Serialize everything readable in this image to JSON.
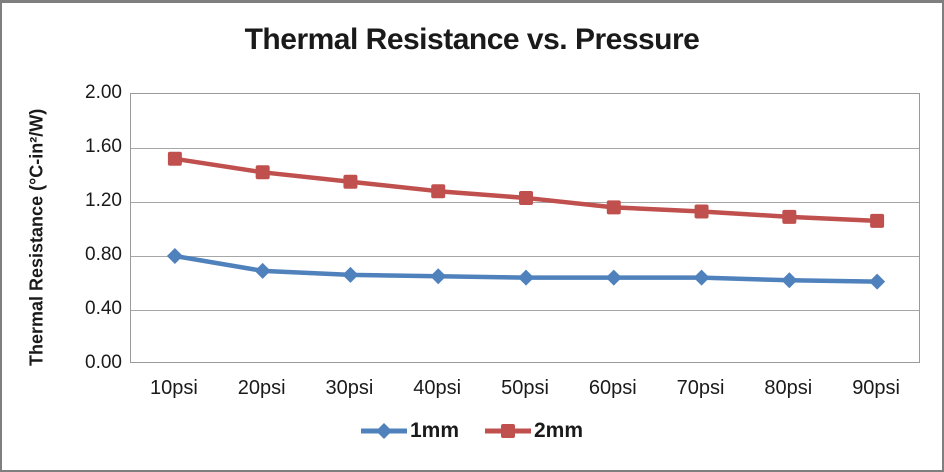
{
  "chart_data": {
    "type": "line",
    "title": "Thermal Resistance vs. Pressure",
    "xlabel": "",
    "ylabel": "Thermal Resistance (°C-in²/W)",
    "categories": [
      "10psi",
      "20psi",
      "30psi",
      "40psi",
      "50psi",
      "60psi",
      "70psi",
      "80psi",
      "90psi"
    ],
    "series": [
      {
        "name": "1mm",
        "marker": "diamond",
        "color": "#4f81bd",
        "values": [
          0.8,
          0.69,
          0.66,
          0.65,
          0.64,
          0.64,
          0.64,
          0.62,
          0.61
        ]
      },
      {
        "name": "2mm",
        "marker": "square",
        "color": "#c0504d",
        "values": [
          1.52,
          1.42,
          1.35,
          1.28,
          1.23,
          1.16,
          1.13,
          1.09,
          1.06
        ]
      }
    ],
    "ylim": [
      0.0,
      2.0
    ],
    "ytick_labels": [
      "2.00",
      "1.60",
      "1.20",
      "0.80",
      "0.40",
      "0.00"
    ],
    "ytick_values": [
      2.0,
      1.6,
      1.2,
      0.8,
      0.4,
      0.0
    ],
    "grid": "horizontal",
    "gridline_color": "#a6a6a6",
    "plot_border_color": "#9a9a9a",
    "text_color": "#1a1a1a",
    "legend_position": "bottom"
  }
}
